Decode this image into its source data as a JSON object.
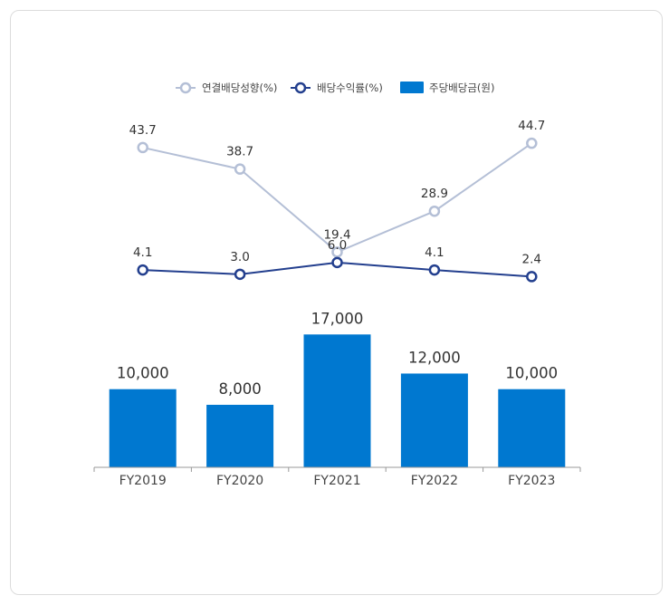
{
  "colors": {
    "payout_line": "#b4bfd6",
    "yield_line": "#233f8e",
    "bars": "#0078d0",
    "axis": "#999999"
  },
  "chart_data": {
    "type": "bar",
    "categories": [
      "FY2019",
      "FY2020",
      "FY2021",
      "FY2022",
      "FY2023"
    ],
    "legend_position": "top",
    "grid": false,
    "series": [
      {
        "name": "연결배당성향(%)",
        "kind": "line",
        "values": [
          43.7,
          38.7,
          19.4,
          28.9,
          44.7
        ]
      },
      {
        "name": "배당수익률(%)",
        "kind": "line",
        "values": [
          4.1,
          3.0,
          6.0,
          4.1,
          2.4
        ]
      },
      {
        "name": "주당배당금(원)",
        "kind": "bar",
        "values": [
          10000,
          8000,
          17000,
          12000,
          10000
        ]
      }
    ],
    "labels": {
      "payout": [
        "43.7",
        "38.7",
        "19.4",
        "28.9",
        "44.7"
      ],
      "yield": [
        "4.1",
        "3.0",
        "6.0",
        "4.1",
        "2.4"
      ],
      "dps": [
        "10,000",
        "8,000",
        "17,000",
        "12,000",
        "10,000"
      ]
    }
  }
}
